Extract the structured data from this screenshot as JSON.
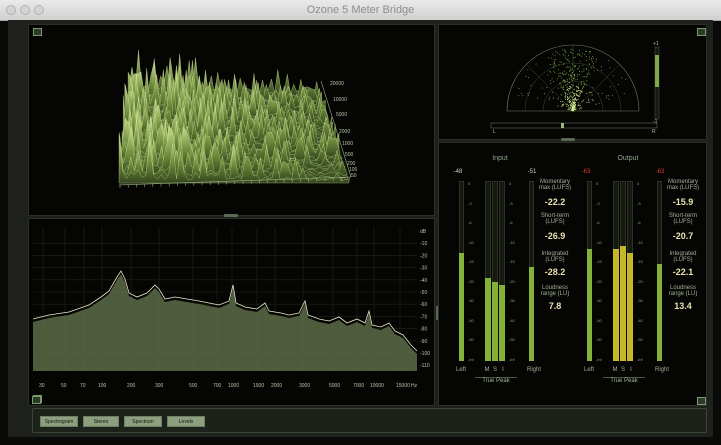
{
  "window": {
    "title": "Ozone 5 Meter Bridge"
  },
  "tabs": [
    {
      "label": "Spectrogram",
      "selected": true
    },
    {
      "label": "Stereo",
      "selected": false
    },
    {
      "label": "Spectrum",
      "selected": false
    },
    {
      "label": "Levels",
      "selected": false
    }
  ],
  "spectrogram": {
    "freq_labels": [
      "20000",
      "10000",
      "5000",
      "2000",
      "1000",
      "500",
      "200",
      "100",
      "50"
    ]
  },
  "spectrum": {
    "x_ticks": [
      "30",
      "50",
      "70",
      "100",
      "200",
      "300",
      "500",
      "700",
      "1000",
      "1500",
      "2000",
      "3000",
      "5000",
      "7000",
      "10000",
      "15000",
      "Hz"
    ],
    "y_ticks": [
      "dB",
      "-10",
      "-20",
      "-30",
      "-40",
      "-50",
      "-60",
      "-70",
      "-80",
      "-90",
      "-100",
      "-110"
    ]
  },
  "stereo": {
    "side_labels": [
      "L",
      "R"
    ],
    "meter_top": "+1",
    "meter_bottom": "-1"
  },
  "levels": {
    "input": {
      "title": "Input",
      "peak_left": "-48",
      "peak_right": "-51",
      "channels": [
        "Left",
        "M",
        "S",
        "I",
        "Right"
      ],
      "true_peak": "True Peak",
      "momentary_label": "Momentary max (LUFS)",
      "momentary": "-22.2",
      "short_term_label": "Short-term (LUFS)",
      "short_term": "-26.9",
      "integrated_label": "Integrated (LUFS)",
      "integrated": "-28.2",
      "range_label": "Loudness range (LU)",
      "range": "7.8"
    },
    "output": {
      "title": "Output",
      "peak_left": "-63",
      "peak_right": "-63",
      "channels": [
        "Left",
        "M",
        "S",
        "I",
        "Right"
      ],
      "true_peak": "True Peak",
      "momentary_label": "Momentary max (LUFS)",
      "momentary": "-15.9",
      "short_term_label": "Short-term (LUFS)",
      "short_term": "-20.7",
      "integrated_label": "Integrated (LUFS)",
      "integrated": "-22.1",
      "range_label": "Loudness range (LU)",
      "range": "13.4"
    },
    "scale": [
      "0",
      "-3",
      "-6",
      "-10",
      "-15",
      "-20",
      "-30",
      "-40",
      "-50",
      "-inf"
    ]
  },
  "colors": {
    "meter_green": "#8fc23a",
    "level_yellow": "#d9c92c",
    "peak_red": "#e33b2f",
    "accent": "#a4c86a"
  }
}
